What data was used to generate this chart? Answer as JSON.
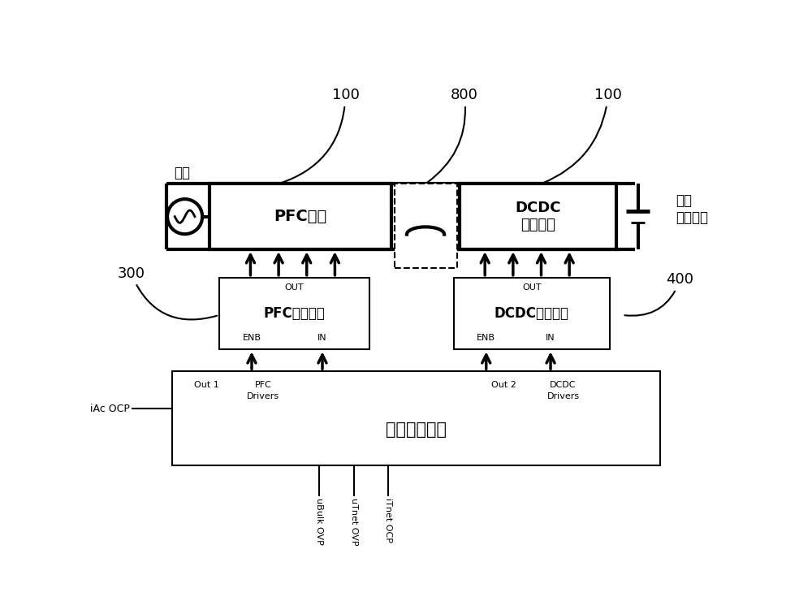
{
  "bg_color": "#ffffff",
  "line_color": "#000000",
  "labels": {
    "grid": "电网",
    "pfc_circuit": "PFC电路",
    "dcdc_circuit": "DCDC\n变换电路",
    "load": "负载\n（电池）",
    "pfc_driver": "PFC驱动电路",
    "dcdc_driver": "DCDC驱动电路",
    "control_unit": "保护控制单元",
    "out1": "Out 1",
    "pfc_drivers": "PFC\nDrivers",
    "out2": "Out 2",
    "dcdc_drivers": "DCDC\nDrivers",
    "enb_left": "ENB",
    "in_left": "IN",
    "enb_right": "ENB",
    "in_right": "IN",
    "out_left": "OUT",
    "out_right": "OUT",
    "iac_ocp": "iAc OCP",
    "ubulk_ovp": "uBulk OVP",
    "utnet_ovp": "uTnet OVP",
    "itnet_ocp": "iTnet OCP",
    "ref100_left": "100",
    "ref800": "800",
    "ref100_right": "100",
    "ref300": "300",
    "ref400": "400"
  },
  "lw": 1.5,
  "lw_thick": 3.0,
  "lw_arrow": 2.5
}
